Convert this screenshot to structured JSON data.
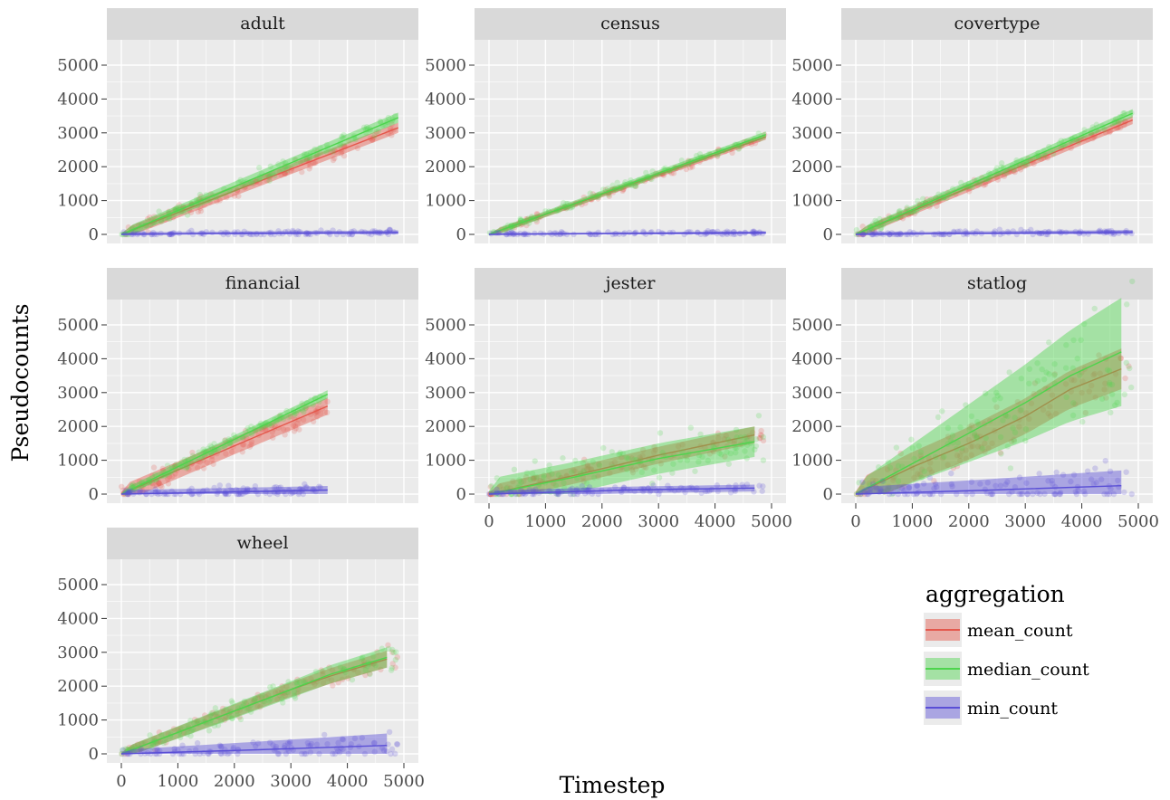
{
  "chart_data": {
    "type": "line",
    "xlabel": "Timestep",
    "ylabel": "Pseudocounts",
    "xlim": [
      0,
      5000
    ],
    "ylim": [
      0,
      5000
    ],
    "x_ticks": [
      "0",
      "1000",
      "2000",
      "3000",
      "4000",
      "5000"
    ],
    "y_ticks": [
      "0",
      "1000",
      "2000",
      "3000",
      "4000",
      "5000"
    ],
    "grid": true,
    "legend": {
      "title": "aggregation",
      "placement": "bottom-right",
      "entries": [
        "mean_count",
        "median_count",
        "min_count"
      ]
    },
    "colors": {
      "mean_count": "#e4584c",
      "median_count": "#4dd44d",
      "min_count": "#5a4fd6",
      "panel_bg": "#ebebeb",
      "strip_bg": "#d9d9d9",
      "grid": "#ffffff"
    },
    "panels": [
      {
        "name": "adult",
        "x_labels": false,
        "xmax": 4900,
        "series": [
          {
            "name": "mean_count",
            "x": [
              0,
              4900
            ],
            "y": [
              0,
              3150
            ],
            "band": [
              150,
              150
            ]
          },
          {
            "name": "median_count",
            "x": [
              0,
              4900
            ],
            "y": [
              0,
              3450
            ],
            "band": [
              150,
              150
            ]
          },
          {
            "name": "min_count",
            "x": [
              0,
              4900
            ],
            "y": [
              0,
              60
            ],
            "band": [
              60,
              60
            ]
          }
        ]
      },
      {
        "name": "census",
        "x_labels": false,
        "xmax": 4900,
        "series": [
          {
            "name": "mean_count",
            "x": [
              0,
              4900
            ],
            "y": [
              0,
              2880
            ],
            "band": [
              80,
              80
            ]
          },
          {
            "name": "median_count",
            "x": [
              0,
              4900
            ],
            "y": [
              0,
              2950
            ],
            "band": [
              90,
              90
            ]
          },
          {
            "name": "min_count",
            "x": [
              0,
              4900
            ],
            "y": [
              0,
              50
            ],
            "band": [
              40,
              40
            ]
          }
        ]
      },
      {
        "name": "covertype",
        "x_labels": false,
        "xmax": 4900,
        "series": [
          {
            "name": "mean_count",
            "x": [
              0,
              4900
            ],
            "y": [
              0,
              3380
            ],
            "band": [
              120,
              120
            ]
          },
          {
            "name": "median_count",
            "x": [
              0,
              4900
            ],
            "y": [
              0,
              3580
            ],
            "band": [
              120,
              120
            ]
          },
          {
            "name": "min_count",
            "x": [
              0,
              4900
            ],
            "y": [
              0,
              70
            ],
            "band": [
              60,
              60
            ]
          }
        ]
      },
      {
        "name": "financial",
        "x_labels": false,
        "xmax": 3650,
        "series": [
          {
            "name": "mean_count",
            "x": [
              0,
              3650
            ],
            "y": [
              0,
              2600
            ],
            "band": [
              250,
              250
            ]
          },
          {
            "name": "median_count",
            "x": [
              0,
              3650
            ],
            "y": [
              0,
              2950
            ],
            "band": [
              120,
              120
            ]
          },
          {
            "name": "min_count",
            "x": [
              0,
              3650
            ],
            "y": [
              0,
              120
            ],
            "band": [
              120,
              120
            ]
          }
        ]
      },
      {
        "name": "jester",
        "x_labels": true,
        "xmax": 4900,
        "series": [
          {
            "name": "mean_count",
            "x": [
              0,
              1500,
              3000,
              4700
            ],
            "y": [
              0,
              550,
              1150,
              1750
            ],
            "band": [
              250,
              250
            ]
          },
          {
            "name": "median_count",
            "x": [
              0,
              1500,
              3000,
              4700
            ],
            "y": [
              0,
              500,
              1050,
              1550
            ],
            "band": [
              450,
              450
            ]
          },
          {
            "name": "min_count",
            "x": [
              0,
              2400,
              4700
            ],
            "y": [
              0,
              120,
              180
            ],
            "band": [
              100,
              100
            ]
          }
        ]
      },
      {
        "name": "statlog",
        "x_labels": true,
        "xmax": 4900,
        "series": [
          {
            "name": "mean_count",
            "x": [
              0,
              1000,
              2000,
              3000,
              3800,
              4700
            ],
            "y": [
              0,
              800,
              1500,
              2300,
              3100,
              3700
            ],
            "band": [
              400,
              600
            ]
          },
          {
            "name": "median_count",
            "x": [
              0,
              1000,
              2000,
              3000,
              3800,
              4700
            ],
            "y": [
              0,
              900,
              1800,
              2700,
              3500,
              4200
            ],
            "band": [
              300,
              1600
            ]
          },
          {
            "name": "min_count",
            "x": [
              0,
              2400,
              4700
            ],
            "y": [
              0,
              120,
              250
            ],
            "band": [
              200,
              450
            ]
          }
        ]
      },
      {
        "name": "wheel",
        "x_labels": true,
        "xmax": 4900,
        "series": [
          {
            "name": "mean_count",
            "x": [
              0,
              1500,
              3000,
              3700,
              4700
            ],
            "y": [
              0,
              950,
              1900,
              2300,
              2800
            ],
            "band": [
              150,
              250
            ]
          },
          {
            "name": "median_count",
            "x": [
              0,
              1500,
              3000,
              3700,
              4700
            ],
            "y": [
              0,
              950,
              1900,
              2350,
              2850
            ],
            "band": [
              150,
              300
            ]
          },
          {
            "name": "min_count",
            "x": [
              0,
              2400,
              4700
            ],
            "y": [
              0,
              120,
              250
            ],
            "band": [
              120,
              350
            ]
          }
        ]
      }
    ]
  }
}
